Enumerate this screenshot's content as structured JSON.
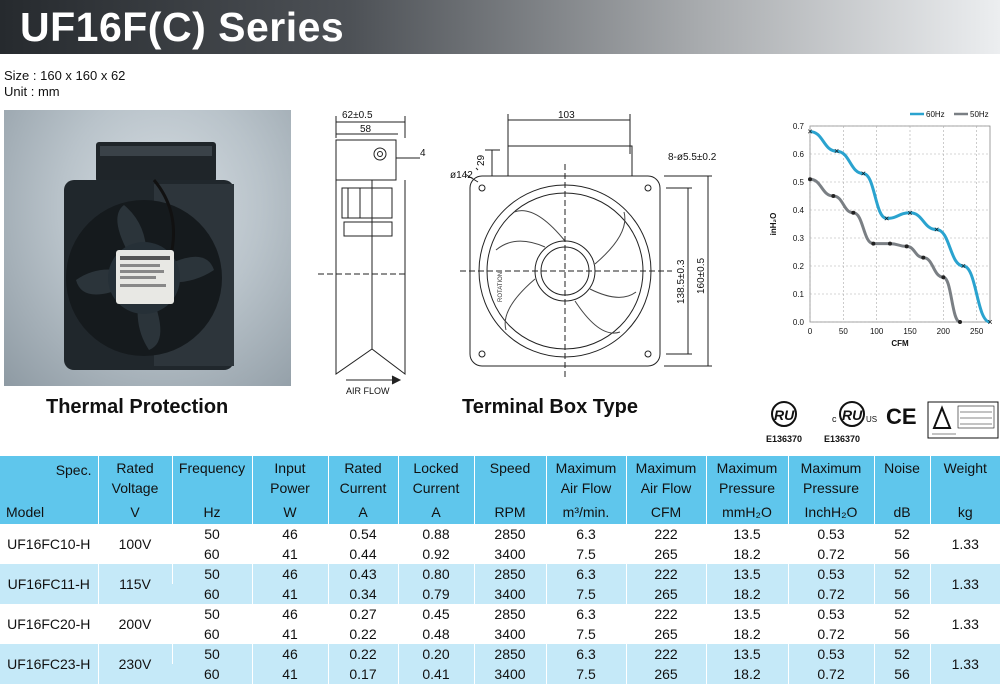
{
  "title": "UF16F(C) Series",
  "size_text": "Size : 160 x 160 x 62",
  "unit_text": "Unit : mm",
  "captions": {
    "thermal": "Thermal Protection",
    "terminal": "Terminal Box Type"
  },
  "drawing_labels": {
    "d62": "62±0.5",
    "d58": "58",
    "d4": "4",
    "airflow": "AIR FLOW",
    "d103": "103",
    "d29": "29",
    "dia142": "ø142",
    "holes": "8-ø5.5±0.2",
    "d1385": "138.5±0.3",
    "d160": "160±0.5",
    "rotation": "ROTATION"
  },
  "certs": {
    "e1": "E136370",
    "e2": "E136370"
  },
  "chart_data": {
    "type": "line",
    "xlabel": "CFM",
    "ylabel": "inH₂O",
    "xlim": [
      0,
      270
    ],
    "ylim": [
      0,
      0.7
    ],
    "xticks": [
      "0",
      "50",
      "100",
      "150",
      "200",
      "250"
    ],
    "yticks": [
      "0.0",
      "0.1",
      "0.2",
      "0.3",
      "0.4",
      "0.5",
      "0.6",
      "0.7"
    ],
    "legend_position": "top-right",
    "grid": true,
    "series": [
      {
        "name": "60Hz",
        "color": "#2aa3cf",
        "x": [
          0,
          40,
          80,
          115,
          150,
          190,
          230,
          270
        ],
        "y": [
          0.68,
          0.61,
          0.53,
          0.37,
          0.39,
          0.33,
          0.2,
          0.0
        ]
      },
      {
        "name": "50Hz",
        "color": "#7a7f84",
        "x": [
          0,
          35,
          65,
          95,
          120,
          145,
          170,
          200,
          225
        ],
        "y": [
          0.51,
          0.45,
          0.39,
          0.28,
          0.28,
          0.27,
          0.23,
          0.16,
          0.0
        ]
      }
    ]
  },
  "table": {
    "headers": [
      {
        "top": "Rated\nVoltage",
        "unit": "V"
      },
      {
        "top": "Frequency",
        "unit": "Hz"
      },
      {
        "top": "Input\nPower",
        "unit": "W"
      },
      {
        "top": "Rated\nCurrent",
        "unit": "A"
      },
      {
        "top": "Locked\nCurrent",
        "unit": "A"
      },
      {
        "top": "Speed",
        "unit": "RPM"
      },
      {
        "top": "Maximum\nAir Flow",
        "unit": "m³/min."
      },
      {
        "top": "Maximum\nAir Flow",
        "unit": "CFM"
      },
      {
        "top": "Maximum\nPressure",
        "unit": "mmH₂O"
      },
      {
        "top": "Maximum\nPressure",
        "unit": "InchH₂O"
      },
      {
        "top": "Noise",
        "unit": "dB"
      },
      {
        "top": "Weight",
        "unit": "kg"
      }
    ],
    "spec_label": "Spec.",
    "model_label": "Model",
    "models": [
      {
        "model": "UF16FC10-H",
        "voltage": "100V",
        "weight": "1.33",
        "rows": [
          [
            "50",
            "46",
            "0.54",
            "0.88",
            "2850",
            "6.3",
            "222",
            "13.5",
            "0.53",
            "52"
          ],
          [
            "60",
            "41",
            "0.44",
            "0.92",
            "3400",
            "7.5",
            "265",
            "18.2",
            "0.72",
            "56"
          ]
        ]
      },
      {
        "model": "UF16FC11-H",
        "voltage": "115V",
        "weight": "1.33",
        "rows": [
          [
            "50",
            "46",
            "0.43",
            "0.80",
            "2850",
            "6.3",
            "222",
            "13.5",
            "0.53",
            "52"
          ],
          [
            "60",
            "41",
            "0.34",
            "0.79",
            "3400",
            "7.5",
            "265",
            "18.2",
            "0.72",
            "56"
          ]
        ]
      },
      {
        "model": "UF16FC20-H",
        "voltage": "200V",
        "weight": "1.33",
        "rows": [
          [
            "50",
            "46",
            "0.27",
            "0.45",
            "2850",
            "6.3",
            "222",
            "13.5",
            "0.53",
            "52"
          ],
          [
            "60",
            "41",
            "0.22",
            "0.48",
            "3400",
            "7.5",
            "265",
            "18.2",
            "0.72",
            "56"
          ]
        ]
      },
      {
        "model": "UF16FC23-H",
        "voltage": "230V",
        "weight": "1.33",
        "rows": [
          [
            "50",
            "46",
            "0.22",
            "0.20",
            "2850",
            "6.3",
            "222",
            "13.5",
            "0.53",
            "52"
          ],
          [
            "60",
            "41",
            "0.17",
            "0.41",
            "3400",
            "7.5",
            "265",
            "18.2",
            "0.72",
            "56"
          ]
        ]
      }
    ]
  }
}
